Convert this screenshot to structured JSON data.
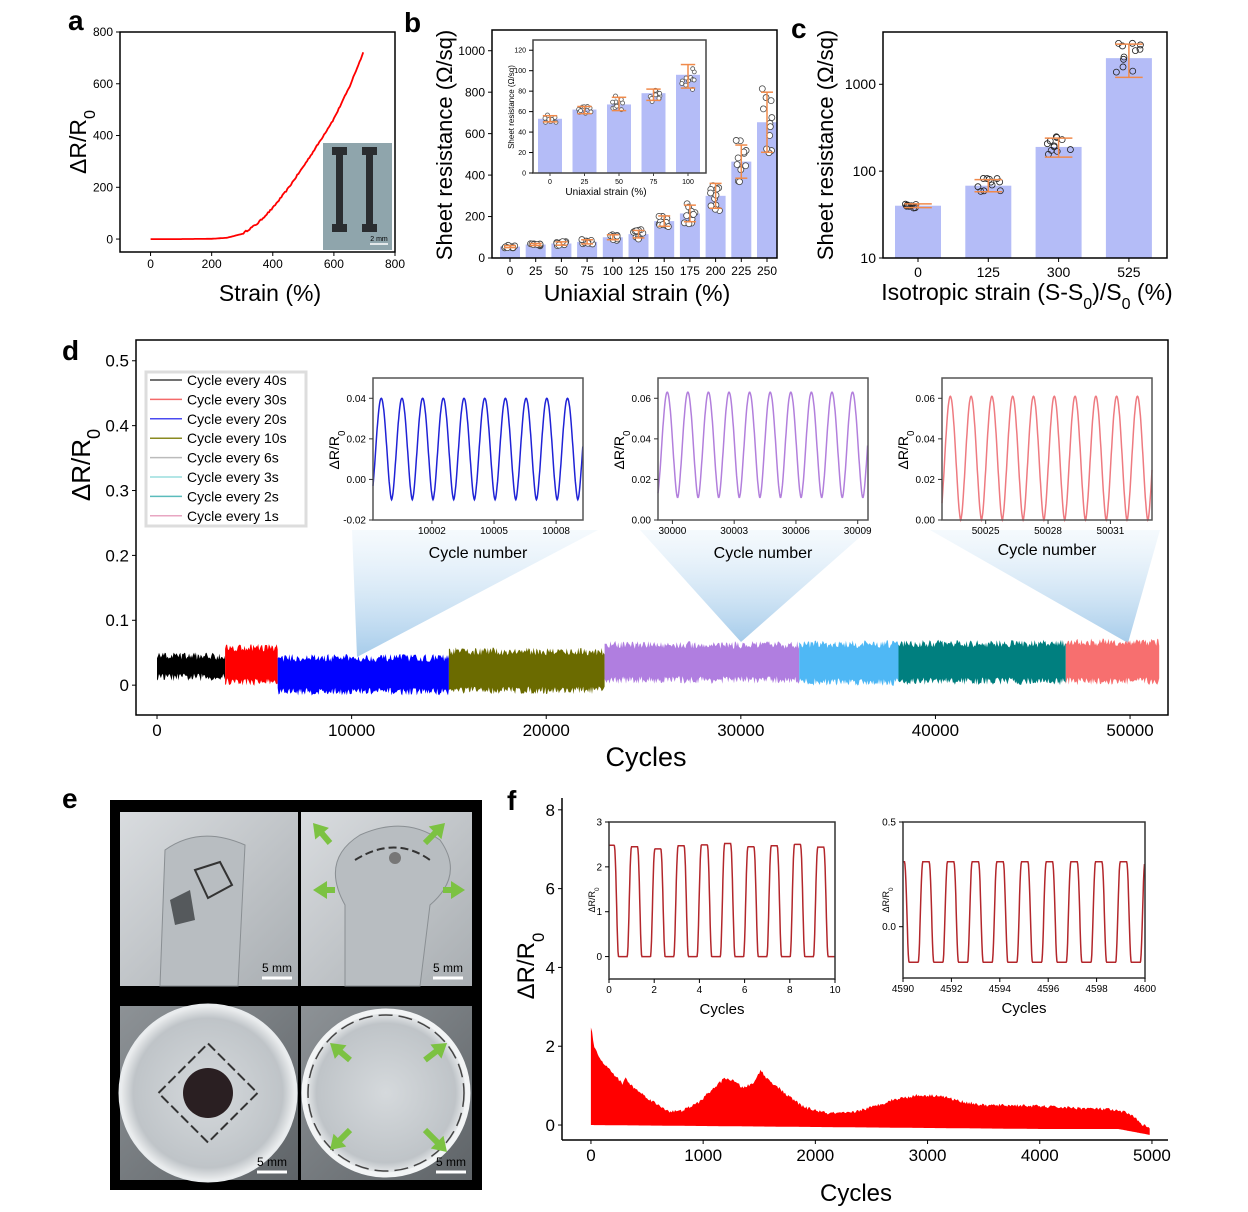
{
  "figure": {
    "panel_labels": [
      "a",
      "b",
      "c",
      "d",
      "e",
      "f"
    ]
  },
  "chart_data": [
    {
      "panel": "a",
      "type": "line",
      "xlabel": "Strain (%)",
      "ylabel_parts": [
        "ΔR/R",
        "0"
      ],
      "xticks": [
        "0",
        "200",
        "400",
        "600",
        "800"
      ],
      "yticks": [
        "0",
        "200",
        "400",
        "600",
        "800"
      ],
      "xlim": [
        -100,
        800
      ],
      "ylim": [
        -50,
        800
      ],
      "grid": false,
      "color": "#ff0000",
      "x": [
        0,
        100,
        200,
        250,
        300,
        350,
        400,
        450,
        500,
        550,
        600,
        650,
        698
      ],
      "y": [
        0,
        0,
        1,
        5,
        20,
        60,
        120,
        195,
        280,
        370,
        465,
        585,
        726
      ],
      "inset_photo_scale": "2 mm"
    },
    {
      "panel": "b",
      "type": "bar",
      "xlabel": "Uniaxial strain (%)",
      "ylabel": "Sheet resistance (Ω/sq)",
      "categories": [
        "0",
        "25",
        "50",
        "75",
        "100",
        "125",
        "150",
        "175",
        "200",
        "225",
        "250"
      ],
      "values": [
        55,
        65,
        70,
        78,
        100,
        115,
        178,
        215,
        300,
        465,
        655
      ],
      "error_low": [
        50,
        60,
        62,
        68,
        88,
        97,
        153,
        175,
        240,
        385,
        510
      ],
      "error_high": [
        60,
        70,
        78,
        88,
        112,
        133,
        203,
        255,
        360,
        545,
        800
      ],
      "yticks": [
        "0",
        "200",
        "400",
        "600",
        "800",
        "1000"
      ],
      "ylim": [
        0,
        1100
      ],
      "bar_color": "#b4bcf7",
      "error_color": "#f08a4b",
      "inset": {
        "xlabel": "Uniaxial strain (%)",
        "ylabel": "Sheet resistance (Ω/sq)",
        "categories": [
          "0",
          "25",
          "50",
          "75",
          "100"
        ],
        "values": [
          53,
          62,
          67,
          78,
          96
        ],
        "error_low": [
          50,
          58,
          61,
          71,
          83
        ],
        "error_high": [
          56,
          65,
          74,
          82,
          106
        ],
        "yticks": [
          "0",
          "20",
          "40",
          "60",
          "80",
          "100",
          "120"
        ],
        "ylim": [
          0,
          130
        ]
      }
    },
    {
      "panel": "c",
      "type": "bar",
      "xlabel_parts": [
        "Isotropic strain (S-S",
        "0",
        ")/S",
        "0",
        " (%)"
      ],
      "ylabel": "Sheet resistance (Ω/sq)",
      "categories": [
        "0",
        "125",
        "300",
        "525"
      ],
      "values": [
        40,
        68,
        190,
        2000
      ],
      "error_low": [
        38,
        58,
        145,
        1200
      ],
      "error_high": [
        42,
        80,
        240,
        2900
      ],
      "yscale": "log",
      "yticks": [
        "10",
        "100",
        "1000"
      ],
      "ylim": [
        10,
        4000
      ],
      "bar_color": "#b4bcf7",
      "error_color": "#f08a4b"
    },
    {
      "panel": "d",
      "type": "area",
      "xlabel": "Cycles",
      "ylabel_parts": [
        "ΔR/R",
        "0"
      ],
      "xticks": [
        "0",
        "10000",
        "20000",
        "30000",
        "40000",
        "50000"
      ],
      "yticks": [
        "0",
        "0.1",
        "0.2",
        "0.3",
        "0.4",
        "0.5"
      ],
      "xlim": [
        -1080,
        51950
      ],
      "ylim": [
        -0.046,
        0.532
      ],
      "legend_position": "top-left",
      "series": [
        {
          "name": "Cycle every 40s",
          "start": 0,
          "end": 3500,
          "min": 0.012,
          "max": 0.045,
          "color": "#000000",
          "legend_color": "#444444"
        },
        {
          "name": "Cycle every 30s",
          "start": 3500,
          "end": 6200,
          "min": 0.005,
          "max": 0.058,
          "color": "#ff0000",
          "legend_color": "#f46a6a"
        },
        {
          "name": "Cycle every 20s",
          "start": 6200,
          "end": 15000,
          "min": -0.01,
          "max": 0.042,
          "color": "#0000ff",
          "legend_color": "#4a4af0"
        },
        {
          "name": "Cycle every 10s",
          "start": 15000,
          "end": 23000,
          "min": -0.008,
          "max": 0.052,
          "color": "#6b6b00",
          "legend_color": "#8a8a20"
        },
        {
          "name": "Cycle every 6s",
          "start": 23000,
          "end": 33000,
          "min": 0.008,
          "max": 0.062,
          "color": "#b07ee0",
          "legend_color": "#bbbbbb"
        },
        {
          "name": "Cycle every 3s",
          "start": 33000,
          "end": 38100,
          "min": 0.005,
          "max": 0.063,
          "color": "#4fb8f5",
          "legend_color": "#9adede"
        },
        {
          "name": "Cycle every 2s",
          "start": 38100,
          "end": 46700,
          "min": 0.006,
          "max": 0.064,
          "color": "#007f7f",
          "legend_color": "#5bbcbc"
        },
        {
          "name": "Cycle every 1s",
          "start": 46700,
          "end": 51500,
          "min": 0.006,
          "max": 0.066,
          "color": "#f76f6f",
          "legend_color": "#e8a6c2"
        }
      ],
      "insets": [
        {
          "xlabel": "Cycle number",
          "ylabel_parts": [
            "ΔR/R",
            "0"
          ],
          "xticks": [
            "10002",
            "10005",
            "10008"
          ],
          "yticks": [
            "-0.02",
            "0.00",
            "0.02",
            "0.04"
          ],
          "xlim": [
            9999.15,
            10009.3
          ],
          "ylim": [
            -0.02,
            0.05
          ],
          "min": -0.01,
          "max": 0.04,
          "period": 1,
          "first_peak": 9999.55,
          "color": "#1f22d6",
          "zoom_at_cycle": 10000
        },
        {
          "xlabel": "Cycle number",
          "ylabel_parts": [
            "ΔR/R",
            "0"
          ],
          "xticks": [
            "30000",
            "30003",
            "30006",
            "30009"
          ],
          "yticks": [
            "0.00",
            "0.02",
            "0.04",
            "0.06"
          ],
          "xlim": [
            29999.3,
            30009.5
          ],
          "ylim": [
            0,
            0.07
          ],
          "min": 0.011,
          "max": 0.063,
          "period": 1,
          "first_peak": 29999.75,
          "color": "#b27fdc",
          "zoom_at_cycle": 30000
        },
        {
          "xlabel": "Cycle number",
          "ylabel_parts": [
            "ΔR/R",
            "0"
          ],
          "xticks": [
            "50025",
            "50028",
            "50031"
          ],
          "yticks": [
            "0.00",
            "0.02",
            "0.04",
            "0.06"
          ],
          "xlim": [
            50022.9,
            50033.0
          ],
          "ylim": [
            0,
            0.07
          ],
          "min": 0.0,
          "max": 0.061,
          "period": 1,
          "first_peak": 50023.3,
          "color": "#ee7a80",
          "zoom_at_cycle": 50000
        }
      ]
    },
    {
      "panel": "f",
      "type": "area",
      "xlabel": "Cycles",
      "ylabel_parts": [
        "ΔR/R",
        "0"
      ],
      "xticks": [
        "0",
        "1000",
        "2000",
        "3000",
        "4000",
        "5000"
      ],
      "yticks": [
        "0",
        "2",
        "4",
        "6",
        "8"
      ],
      "xlim": [
        -258,
        5143
      ],
      "ylim": [
        -0.38,
        8.3
      ],
      "color": "#ff0000",
      "upper": {
        "x": [
          0,
          30,
          100,
          200,
          280,
          310,
          340,
          450,
          600,
          700,
          800,
          950,
          1100,
          1200,
          1280,
          1350,
          1450,
          1510,
          1560,
          1650,
          1750,
          1900,
          2100,
          2300,
          2500,
          2700,
          2900,
          3100,
          3300,
          3500,
          3800,
          4200,
          4600,
          4800,
          4900,
          4980
        ],
        "y": [
          2.5,
          2.0,
          1.6,
          1.3,
          1.05,
          1.2,
          1.05,
          0.8,
          0.5,
          0.35,
          0.35,
          0.55,
          0.95,
          1.2,
          1.1,
          0.95,
          1.05,
          1.4,
          1.2,
          1.0,
          0.75,
          0.45,
          0.3,
          0.3,
          0.45,
          0.65,
          0.75,
          0.75,
          0.6,
          0.5,
          0.5,
          0.45,
          0.4,
          0.3,
          0.05,
          -0.1
        ]
      },
      "lower": {
        "x": [
          0,
          2000,
          4000,
          4700,
          4980
        ],
        "y": [
          0,
          -0.05,
          -0.1,
          -0.1,
          -0.25
        ]
      },
      "insets": [
        {
          "xlabel": "Cycles",
          "ylabel_parts": [
            "ΔR/R",
            "0"
          ],
          "xticks": [
            "0",
            "2",
            "4",
            "6",
            "8",
            "10"
          ],
          "yticks": [
            "0",
            "1",
            "2",
            "3"
          ],
          "xlim": [
            0,
            10
          ],
          "ylim": [
            -0.5,
            3
          ],
          "min": 0.0,
          "peaks": [
            2.48,
            2.45,
            2.4,
            2.47,
            2.49,
            2.52,
            2.45,
            2.47,
            2.5,
            2.44
          ],
          "first_peak": 0.1,
          "period": 1.03,
          "color": "#b3262b"
        },
        {
          "xlabel": "Cycles",
          "ylabel_parts": [
            "ΔR/R",
            "0"
          ],
          "xticks": [
            "4590",
            "4592",
            "4594",
            "4596",
            "4598",
            "4600"
          ],
          "yticks": [
            "0.0",
            "0.5"
          ],
          "xlim": [
            4590,
            4600
          ],
          "ylim": [
            -0.245,
            0.5
          ],
          "min": -0.17,
          "peaks": [
            0.31,
            0.31,
            0.31,
            0.31,
            0.31,
            0.31,
            0.31,
            0.31,
            0.31
          ],
          "first_peak": 4590.95,
          "period": 1.02,
          "color": "#b3262b"
        }
      ]
    }
  ],
  "panel_e": {
    "scale_labels": [
      "5 mm",
      "5 mm",
      "5 mm",
      "5 mm"
    ],
    "arrow_color": "#7cc242"
  }
}
